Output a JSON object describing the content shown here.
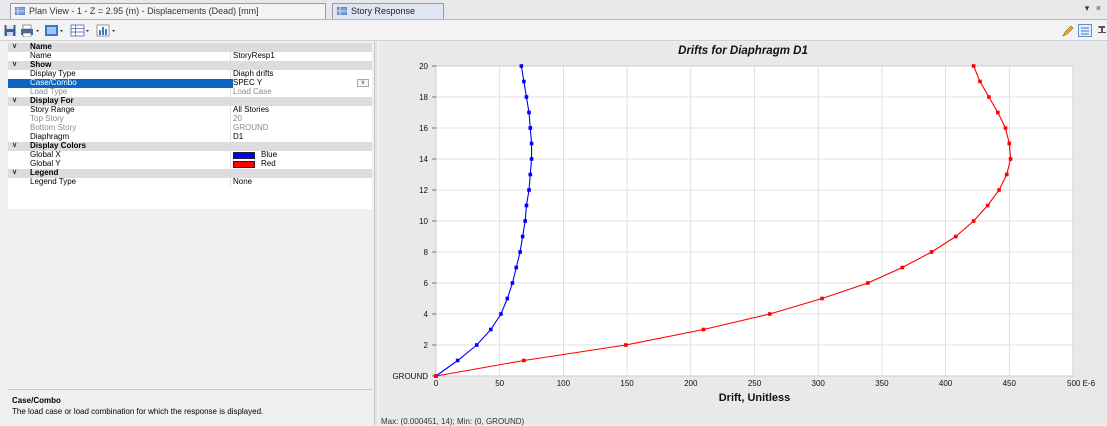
{
  "tabs": [
    {
      "label": "Plan View - 1 - Z = 2.95 (m)  - Displacements (Dead)  [mm]",
      "active": false
    },
    {
      "label": "Story Response",
      "active": true
    }
  ],
  "tab_menu_glyph": "▾ ×",
  "properties": {
    "name_cat": "Name",
    "name_label": "Name",
    "name_value": "StoryResp1",
    "show_cat": "Show",
    "display_type_label": "Display Type",
    "display_type_value": "Diaph drifts",
    "case_combo_label": "Case/Combo",
    "case_combo_value": "SPEC Y",
    "load_type_label": "Load Type",
    "load_type_value": "Load Case",
    "display_for_cat": "Display For",
    "story_range_label": "Story Range",
    "story_range_value": "All Stories",
    "top_story_label": "Top Story",
    "top_story_value": "20",
    "bottom_story_label": "Bottom Story",
    "bottom_story_value": "GROUND",
    "diaphragm_label": "Diaphragm",
    "diaphragm_value": "D1",
    "display_colors_cat": "Display Colors",
    "global_x_label": "Global X",
    "global_x_value": "Blue",
    "global_x_color": "#0000ff",
    "global_y_label": "Global Y",
    "global_y_value": "Red",
    "global_y_color": "#ff0000",
    "legend_cat": "Legend",
    "legend_type_label": "Legend Type",
    "legend_type_value": "None"
  },
  "description": {
    "title": "Case/Combo",
    "text": "The load case or load combination for which the response is displayed."
  },
  "status_text": "Max: (0.000451, 14);  Min: (0, GROUND)",
  "colors": {
    "selection": "#0a66c2",
    "series_x": "#0000ff",
    "series_y": "#ff0000"
  },
  "chart_data": {
    "type": "line",
    "title": "Drifts for Diaphragm D1",
    "xlabel": "Drift, Unitless",
    "xlim": [
      0,
      500
    ],
    "ylim": [
      0,
      20
    ],
    "x_tick_labels": [
      "0",
      "50",
      "100",
      "150",
      "200",
      "250",
      "300",
      "350",
      "400",
      "450",
      "500 E-6"
    ],
    "x_ticks": [
      0,
      50,
      100,
      150,
      200,
      250,
      300,
      350,
      400,
      450,
      500
    ],
    "y_tick_labels": [
      "GROUND",
      "2",
      "4",
      "6",
      "8",
      "10",
      "12",
      "14",
      "16",
      "18",
      "20"
    ],
    "y_ticks": [
      0,
      2,
      4,
      6,
      8,
      10,
      12,
      14,
      16,
      18,
      20
    ],
    "grid": true,
    "series": [
      {
        "name": "Global X",
        "color": "#0000ff",
        "points": [
          [
            0,
            0
          ],
          [
            17,
            1
          ],
          [
            32,
            2
          ],
          [
            43,
            3
          ],
          [
            51,
            4
          ],
          [
            56,
            5
          ],
          [
            60,
            6
          ],
          [
            63,
            7
          ],
          [
            66,
            8
          ],
          [
            68,
            9
          ],
          [
            70,
            10
          ],
          [
            71,
            11
          ],
          [
            73,
            12
          ],
          [
            74,
            13
          ],
          [
            75,
            14
          ],
          [
            75,
            15
          ],
          [
            74,
            16
          ],
          [
            73,
            17
          ],
          [
            71,
            18
          ],
          [
            69,
            19
          ],
          [
            67,
            20
          ]
        ]
      },
      {
        "name": "Global Y",
        "color": "#ff0000",
        "points": [
          [
            0,
            0
          ],
          [
            69,
            1
          ],
          [
            149,
            2
          ],
          [
            210,
            3
          ],
          [
            262,
            4
          ],
          [
            303,
            5
          ],
          [
            339,
            6
          ],
          [
            366,
            7
          ],
          [
            389,
            8
          ],
          [
            408,
            9
          ],
          [
            422,
            10
          ],
          [
            433,
            11
          ],
          [
            442,
            12
          ],
          [
            448,
            13
          ],
          [
            451,
            14
          ],
          [
            450,
            15
          ],
          [
            447,
            16
          ],
          [
            441,
            17
          ],
          [
            434,
            18
          ],
          [
            427,
            19
          ],
          [
            422,
            20
          ]
        ]
      }
    ]
  }
}
